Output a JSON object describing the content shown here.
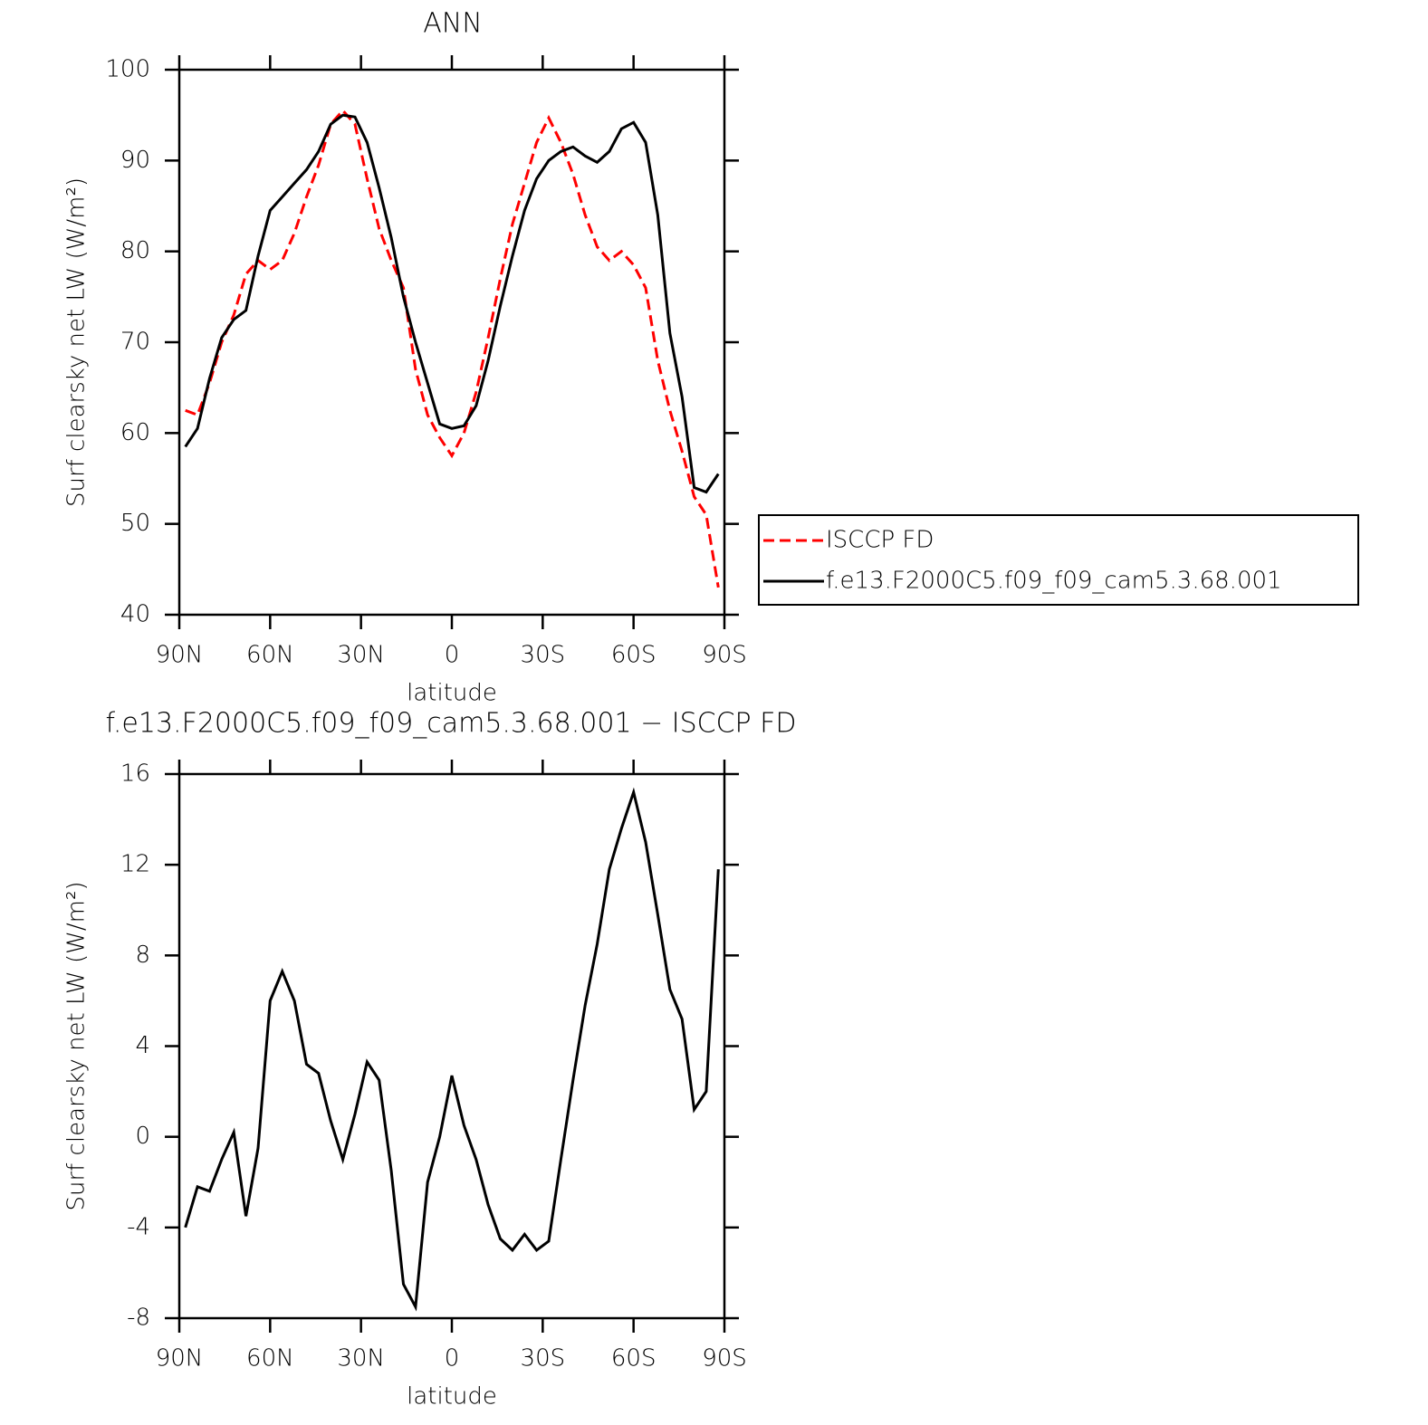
{
  "chart_data": [
    {
      "type": "line",
      "title": "ANN",
      "xlabel": "latitude",
      "ylabel": "Surf clearsky net LW (W/m²)",
      "x": [
        88,
        84,
        80,
        76,
        72,
        68,
        64,
        60,
        56,
        52,
        48,
        44,
        40,
        36,
        32,
        28,
        24,
        20,
        16,
        12,
        8,
        4,
        0,
        -4,
        -8,
        -12,
        -16,
        -20,
        -24,
        -28,
        -32,
        -36,
        -40,
        -44,
        -48,
        -52,
        -56,
        -60,
        -64,
        -68,
        -72,
        -76,
        -80,
        -84,
        -88
      ],
      "series": [
        {
          "name": "ISCCP FD",
          "color": "#ff0000",
          "line_style": "dashed",
          "values": [
            62.5,
            62,
            65.5,
            70,
            73,
            77.5,
            79,
            78,
            79,
            82,
            86,
            89.5,
            94,
            95.5,
            94,
            88,
            82.5,
            79,
            76,
            67,
            62,
            59.5,
            57.5,
            60,
            64.5,
            70.5,
            77,
            83,
            87.5,
            92,
            94.7,
            92,
            88.5,
            84,
            80.5,
            79,
            80,
            78.5,
            76,
            68,
            62.5,
            58,
            53,
            51,
            43
          ]
        },
        {
          "name": "f.e13.F2000C5.f09_f09_cam5.3.68.001",
          "color": "#000000",
          "line_style": "solid",
          "values": [
            58.5,
            60.5,
            66,
            70.5,
            72.5,
            73.5,
            79.5,
            84.5,
            86,
            87.5,
            89,
            91,
            94,
            95,
            94.8,
            92,
            87,
            81.5,
            75,
            70,
            65.5,
            61,
            60.5,
            60.8,
            63,
            68,
            74,
            79.5,
            84.5,
            88,
            90,
            91,
            91.5,
            90.5,
            89.8,
            91,
            93.5,
            94.2,
            92,
            84,
            71,
            64,
            54,
            53.5,
            55.5
          ]
        }
      ],
      "xlim": [
        90,
        -90
      ],
      "xticks": [
        {
          "value": 90,
          "label": "90N"
        },
        {
          "value": 60,
          "label": "60N"
        },
        {
          "value": 30,
          "label": "30N"
        },
        0,
        {
          "value": -30,
          "label": "30S"
        },
        {
          "value": -60,
          "label": "60S"
        },
        {
          "value": -90,
          "label": "90S"
        }
      ],
      "ylim": [
        40,
        100
      ],
      "yticks": [
        40,
        50,
        60,
        70,
        80,
        90,
        100
      ]
    },
    {
      "type": "line",
      "title": "f.e13.F2000C5.f09_f09_cam5.3.68.001 − ISCCP FD",
      "xlabel": "latitude",
      "ylabel": "Surf clearsky net LW (W/m²)",
      "x": [
        88,
        84,
        80,
        76,
        72,
        68,
        64,
        60,
        56,
        52,
        48,
        44,
        40,
        36,
        32,
        28,
        24,
        20,
        16,
        12,
        8,
        4,
        0,
        -4,
        -8,
        -12,
        -16,
        -20,
        -24,
        -28,
        -32,
        -36,
        -40,
        -44,
        -48,
        -52,
        -56,
        -60,
        -64,
        -68,
        -72,
        -76,
        -80,
        -84,
        -88
      ],
      "series": [
        {
          "color": "#000000",
          "line_style": "solid",
          "values": [
            -4,
            -2.2,
            -2.4,
            -1,
            0.2,
            -3.5,
            -0.5,
            6,
            7.3,
            6,
            3.2,
            2.8,
            0.7,
            -1,
            1,
            3.3,
            2.5,
            -1.5,
            -6.5,
            -7.5,
            -2,
            0,
            2.7,
            0.5,
            -1,
            -3,
            -4.5,
            -5,
            -4.3,
            -5,
            -4.6,
            -1,
            2.5,
            5.8,
            8.5,
            11.8,
            13.6,
            15.2,
            13,
            9.8,
            6.5,
            5.2,
            1.2,
            2,
            11.8
          ]
        }
      ],
      "xlim": [
        90,
        -90
      ],
      "xticks": [
        {
          "value": 90,
          "label": "90N"
        },
        {
          "value": 60,
          "label": "60N"
        },
        {
          "value": 30,
          "label": "30N"
        },
        0,
        {
          "value": -30,
          "label": "30S"
        },
        {
          "value": -60,
          "label": "60S"
        },
        {
          "value": -90,
          "label": "90S"
        }
      ],
      "ylim": [
        -8,
        16
      ],
      "yticks": [
        -8,
        -4,
        0,
        4,
        8,
        12,
        16
      ]
    }
  ]
}
